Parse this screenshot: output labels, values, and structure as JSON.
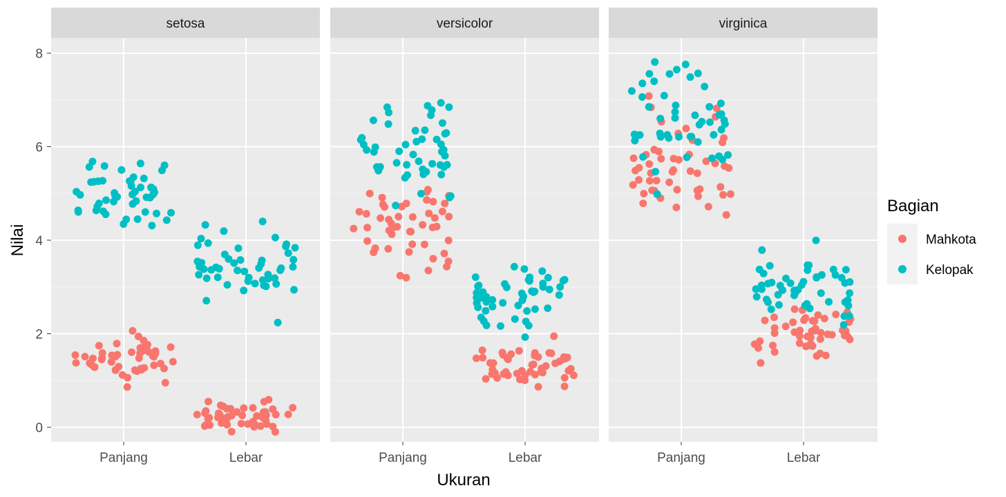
{
  "chart_data": {
    "type": "scatter",
    "subtype": "faceted jitter plot",
    "xlabel": "Ukuran",
    "ylabel": "Nilai",
    "x_categories": [
      "Panjang",
      "Lebar"
    ],
    "ylim": [
      -0.3,
      8.4
    ],
    "yticks": [
      0,
      2,
      4,
      6,
      8
    ],
    "grid": true,
    "legend": {
      "title": "Bagian",
      "placement": "right",
      "entries": [
        {
          "label": "Mahkota",
          "color": "#F8766D"
        },
        {
          "label": "Kelopak",
          "color": "#00BFC4"
        }
      ]
    },
    "panel_background": "#EBEBEB",
    "strip_background": "#D9D9D9",
    "facets": [
      {
        "name": "setosa",
        "series": [
          {
            "label": "Mahkota",
            "x": "Panjang",
            "values": [
              1.4,
              1.4,
              1.3,
              1.5,
              1.4,
              1.7,
              1.4,
              1.5,
              1.4,
              1.5,
              1.5,
              1.6,
              1.4,
              1.1,
              1.2,
              1.5,
              1.3,
              1.4,
              1.7,
              1.5,
              1.7,
              1.5,
              1.0,
              1.7,
              1.9,
              1.6,
              1.6,
              1.5,
              1.4,
              1.6,
              1.6,
              1.5,
              1.5,
              1.4,
              1.5,
              1.2,
              1.3,
              1.4,
              1.3,
              1.5,
              1.3,
              1.3,
              1.3,
              1.6,
              1.9,
              1.4,
              1.6,
              1.4,
              1.5,
              1.4
            ]
          },
          {
            "label": "Mahkota",
            "x": "Lebar",
            "values": [
              0.2,
              0.2,
              0.2,
              0.2,
              0.2,
              0.4,
              0.3,
              0.2,
              0.2,
              0.1,
              0.2,
              0.2,
              0.1,
              0.1,
              0.2,
              0.4,
              0.4,
              0.3,
              0.3,
              0.3,
              0.2,
              0.4,
              0.2,
              0.5,
              0.2,
              0.2,
              0.4,
              0.2,
              0.2,
              0.2,
              0.2,
              0.4,
              0.1,
              0.2,
              0.2,
              0.2,
              0.2,
              0.1,
              0.2,
              0.2,
              0.3,
              0.3,
              0.2,
              0.6,
              0.4,
              0.3,
              0.2,
              0.2,
              0.2,
              0.2
            ]
          },
          {
            "label": "Kelopak",
            "x": "Panjang",
            "values": [
              5.1,
              4.9,
              4.7,
              4.6,
              5.0,
              5.4,
              4.6,
              5.0,
              4.4,
              4.9,
              5.4,
              4.8,
              4.8,
              4.3,
              5.8,
              5.7,
              5.4,
              5.1,
              5.7,
              5.1,
              5.4,
              5.1,
              4.6,
              5.1,
              4.8,
              5.0,
              5.0,
              5.2,
              5.2,
              4.7,
              4.8,
              5.4,
              5.2,
              5.5,
              4.9,
              5.0,
              5.5,
              4.9,
              4.4,
              5.1,
              5.0,
              4.5,
              4.4,
              5.0,
              5.1,
              4.8,
              5.1,
              4.6,
              5.3,
              5.0
            ]
          },
          {
            "label": "Kelopak",
            "x": "Lebar",
            "values": [
              3.5,
              3.0,
              3.2,
              3.1,
              3.6,
              3.9,
              3.4,
              3.4,
              2.9,
              3.1,
              3.7,
              3.4,
              3.0,
              3.0,
              4.0,
              4.4,
              3.9,
              3.5,
              3.8,
              3.8,
              3.4,
              3.7,
              3.6,
              3.3,
              3.4,
              3.0,
              3.4,
              3.5,
              3.4,
              3.2,
              3.1,
              3.4,
              4.1,
              4.2,
              3.1,
              3.2,
              3.5,
              3.6,
              3.0,
              3.4,
              3.5,
              2.3,
              3.2,
              3.5,
              3.8,
              3.0,
              3.8,
              3.2,
              3.7,
              3.3
            ]
          }
        ]
      },
      {
        "name": "versicolor",
        "series": [
          {
            "label": "Mahkota",
            "x": "Panjang",
            "values": [
              4.7,
              4.5,
              4.9,
              4.0,
              4.6,
              4.5,
              4.7,
              3.3,
              4.6,
              3.9,
              3.5,
              4.2,
              4.0,
              4.7,
              3.6,
              4.4,
              4.5,
              4.1,
              4.5,
              3.9,
              4.8,
              4.0,
              4.9,
              4.7,
              4.3,
              4.4,
              4.8,
              5.0,
              4.5,
              3.5,
              3.8,
              3.7,
              3.9,
              5.1,
              4.5,
              4.5,
              4.7,
              4.4,
              4.1,
              4.0,
              4.4,
              4.6,
              4.0,
              3.3,
              4.2,
              4.2,
              4.2,
              4.3,
              3.0,
              4.1
            ]
          },
          {
            "label": "Mahkota",
            "x": "Lebar",
            "values": [
              1.4,
              1.5,
              1.5,
              1.3,
              1.5,
              1.3,
              1.6,
              1.0,
              1.3,
              1.4,
              1.0,
              1.5,
              1.0,
              1.4,
              1.3,
              1.4,
              1.5,
              1.0,
              1.5,
              1.1,
              1.8,
              1.3,
              1.5,
              1.2,
              1.3,
              1.4,
              1.4,
              1.7,
              1.5,
              1.0,
              1.1,
              1.0,
              1.2,
              1.6,
              1.5,
              1.6,
              1.5,
              1.3,
              1.3,
              1.3,
              1.2,
              1.4,
              1.2,
              1.0,
              1.3,
              1.2,
              1.3,
              1.3,
              1.1,
              1.3
            ]
          },
          {
            "label": "Kelopak",
            "x": "Panjang",
            "values": [
              7.0,
              6.4,
              6.9,
              5.5,
              6.5,
              5.7,
              6.3,
              4.9,
              6.6,
              5.2,
              5.0,
              5.9,
              6.0,
              6.1,
              5.6,
              6.7,
              5.6,
              5.8,
              6.2,
              5.6,
              5.9,
              6.1,
              6.3,
              6.1,
              6.4,
              6.6,
              6.8,
              6.7,
              6.0,
              5.7,
              5.5,
              5.5,
              5.8,
              6.0,
              5.4,
              6.0,
              6.7,
              6.3,
              5.6,
              5.5,
              5.5,
              6.1,
              5.8,
              5.0,
              5.6,
              5.7,
              5.7,
              6.2,
              5.1,
              5.7
            ]
          },
          {
            "label": "Kelopak",
            "x": "Lebar",
            "values": [
              3.2,
              3.2,
              3.1,
              2.3,
              2.8,
              2.8,
              3.3,
              2.4,
              2.9,
              2.7,
              2.0,
              3.0,
              2.2,
              2.9,
              2.9,
              3.1,
              3.0,
              2.7,
              2.2,
              2.5,
              3.2,
              2.8,
              2.5,
              2.8,
              2.9,
              3.0,
              2.8,
              3.0,
              2.9,
              2.6,
              2.4,
              2.4,
              2.7,
              2.7,
              3.0,
              3.4,
              3.1,
              2.3,
              3.0,
              2.5,
              2.6,
              3.0,
              2.6,
              2.3,
              2.7,
              3.0,
              2.9,
              2.9,
              2.5,
              2.8
            ]
          }
        ]
      },
      {
        "name": "virginica",
        "series": [
          {
            "label": "Mahkota",
            "x": "Panjang",
            "values": [
              6.0,
              5.1,
              5.9,
              5.6,
              5.8,
              6.6,
              4.5,
              6.3,
              5.8,
              6.1,
              5.1,
              5.3,
              5.5,
              5.0,
              5.1,
              5.3,
              5.5,
              6.7,
              6.9,
              5.0,
              5.7,
              4.9,
              6.7,
              4.9,
              5.7,
              6.0,
              4.8,
              4.9,
              5.6,
              5.8,
              6.1,
              6.4,
              5.6,
              5.1,
              5.6,
              6.1,
              5.6,
              5.5,
              4.8,
              5.4,
              5.6,
              5.1,
              5.1,
              5.9,
              5.7,
              5.2,
              5.0,
              5.2,
              5.4,
              5.1
            ]
          },
          {
            "label": "Mahkota",
            "x": "Lebar",
            "values": [
              2.5,
              1.9,
              2.1,
              1.8,
              2.2,
              2.1,
              1.7,
              1.8,
              1.8,
              2.5,
              2.0,
              1.9,
              2.1,
              2.0,
              2.4,
              2.3,
              1.8,
              2.2,
              2.3,
              1.5,
              2.3,
              2.0,
              2.0,
              1.8,
              2.1,
              1.8,
              1.8,
              1.8,
              2.1,
              1.6,
              1.9,
              2.0,
              2.2,
              1.5,
              1.4,
              2.3,
              2.4,
              1.8,
              1.8,
              2.1,
              2.4,
              2.3,
              1.9,
              2.3,
              2.5,
              2.3,
              1.9,
              2.0,
              2.3,
              1.8
            ]
          },
          {
            "label": "Kelopak",
            "x": "Panjang",
            "values": [
              6.3,
              5.8,
              7.1,
              6.3,
              6.5,
              7.6,
              4.9,
              7.3,
              6.7,
              7.2,
              6.5,
              6.4,
              6.8,
              5.7,
              5.8,
              6.4,
              6.5,
              7.7,
              7.7,
              6.0,
              6.9,
              5.6,
              7.7,
              6.3,
              6.7,
              7.2,
              6.2,
              6.1,
              6.4,
              7.2,
              7.4,
              7.9,
              6.4,
              6.3,
              6.1,
              7.7,
              6.3,
              6.4,
              6.0,
              6.9,
              6.7,
              6.9,
              5.8,
              6.8,
              6.7,
              6.7,
              6.3,
              6.5,
              6.2,
              5.9
            ]
          },
          {
            "label": "Kelopak",
            "x": "Lebar",
            "values": [
              3.3,
              2.7,
              3.0,
              2.9,
              3.0,
              3.0,
              2.5,
              2.9,
              2.5,
              3.6,
              3.2,
              2.7,
              3.0,
              2.5,
              2.8,
              3.2,
              3.0,
              3.8,
              2.6,
              2.2,
              3.2,
              2.8,
              2.8,
              2.7,
              3.3,
              3.2,
              2.8,
              3.0,
              2.8,
              3.0,
              2.8,
              3.8,
              2.8,
              2.8,
              2.6,
              3.0,
              3.4,
              3.1,
              3.0,
              3.1,
              3.1,
              3.1,
              2.7,
              3.2,
              3.3,
              3.0,
              2.5,
              3.0,
              3.4,
              3.0
            ]
          }
        ]
      }
    ]
  }
}
